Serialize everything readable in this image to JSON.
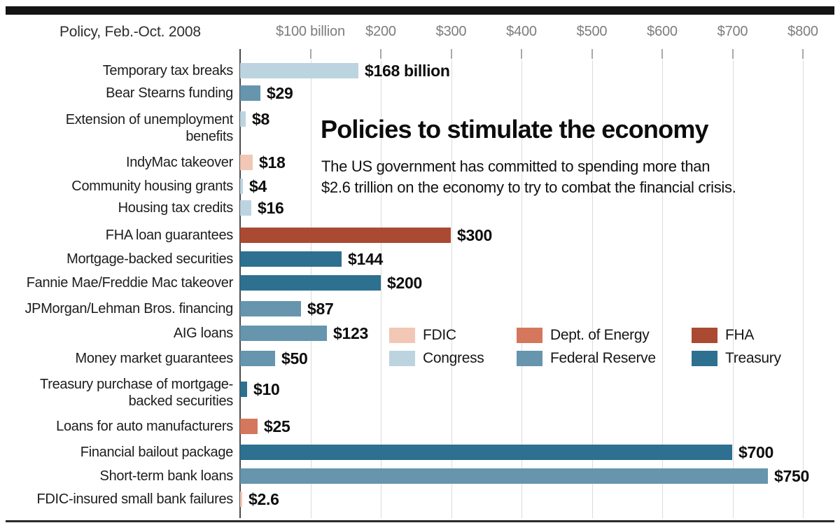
{
  "header": {
    "label": "Policy, Feb.-Oct. 2008"
  },
  "title_block": {
    "title": "Policies to stimulate the economy",
    "subtitle_line1": "The US government has committed to spending more than",
    "subtitle_line2": "$2.6 trillion on the economy to try to combat the financial crisis."
  },
  "chart_data": {
    "type": "bar",
    "orientation": "horizontal",
    "title": "Policies to stimulate the economy",
    "subtitle": "The US government has committed to spending more than $2.6 trillion on the economy to try to combat the financial crisis.",
    "header": "Policy, Feb.-Oct. 2008",
    "unit": "billions of US dollars",
    "x_axis": {
      "range": [
        0,
        850
      ],
      "grid": true,
      "ticks": [
        {
          "value": 100,
          "label": "$100 billion"
        },
        {
          "value": 200,
          "label": "$200"
        },
        {
          "value": 300,
          "label": "$300"
        },
        {
          "value": 400,
          "label": "$400"
        },
        {
          "value": 500,
          "label": "$500"
        },
        {
          "value": 600,
          "label": "$600"
        },
        {
          "value": 700,
          "label": "$700"
        },
        {
          "value": 800,
          "label": "$800"
        }
      ]
    },
    "colors": {
      "FDIC": "#f2c7b5",
      "Dept. of Energy": "#d4775c",
      "FHA": "#aa4a32",
      "Congress": "#bcd4e0",
      "Federal Reserve": "#6695ad",
      "Treasury": "#2d7090"
    },
    "legend": [
      {
        "name": "FDIC",
        "color": "#f2c7b5"
      },
      {
        "name": "Dept. of Energy",
        "color": "#d4775c"
      },
      {
        "name": "FHA",
        "color": "#aa4a32"
      },
      {
        "name": "Congress",
        "color": "#bcd4e0"
      },
      {
        "name": "Federal Reserve",
        "color": "#6695ad"
      },
      {
        "name": "Treasury",
        "color": "#2d7090"
      }
    ],
    "rows": [
      {
        "label": "Temporary tax breaks",
        "value": 168,
        "value_label": "$168 billion",
        "agency": "Congress"
      },
      {
        "label": "Bear Stearns funding",
        "value": 29,
        "value_label": "$29",
        "agency": "Federal Reserve"
      },
      {
        "label": "Extension of unemployment benefits",
        "label_lines": [
          "Extension of unemployment",
          "benefits"
        ],
        "value": 8,
        "value_label": "$8",
        "agency": "Congress"
      },
      {
        "label": "IndyMac takeover",
        "value": 18,
        "value_label": "$18",
        "agency": "FDIC"
      },
      {
        "label": "Community housing grants",
        "value": 4,
        "value_label": "$4",
        "agency": "Congress"
      },
      {
        "label": "Housing tax credits",
        "value": 16,
        "value_label": "$16",
        "agency": "Congress"
      },
      {
        "label": "FHA loan guarantees",
        "value": 300,
        "value_label": "$300",
        "agency": "FHA"
      },
      {
        "label": "Mortgage-backed securities",
        "value": 144,
        "value_label": "$144",
        "agency": "Treasury"
      },
      {
        "label": "Fannie Mae/Freddie Mac takeover",
        "value": 200,
        "value_label": "$200",
        "agency": "Treasury"
      },
      {
        "label": "JPMorgan/Lehman Bros. financing",
        "value": 87,
        "value_label": "$87",
        "agency": "Federal Reserve"
      },
      {
        "label": "AIG loans",
        "value": 123,
        "value_label": "$123",
        "agency": "Federal Reserve"
      },
      {
        "label": "Money market guarantees",
        "value": 50,
        "value_label": "$50",
        "agency": "Federal Reserve"
      },
      {
        "label": "Treasury purchase of mortgage-backed securities",
        "label_lines": [
          "Treasury purchase of mortgage-",
          "backed securities"
        ],
        "value": 10,
        "value_label": "$10",
        "agency": "Treasury"
      },
      {
        "label": "Loans for auto manufacturers",
        "value": 25,
        "value_label": "$25",
        "agency": "Dept. of Energy"
      },
      {
        "label": "Financial bailout package",
        "value": 700,
        "value_label": "$700",
        "agency": "Treasury"
      },
      {
        "label": "Short-term bank loans",
        "value": 750,
        "value_label": "$750",
        "agency": "Federal Reserve"
      },
      {
        "label": "FDIC-insured small bank failures",
        "value": 2.6,
        "value_label": "$2.6",
        "agency": "FDIC"
      }
    ]
  }
}
